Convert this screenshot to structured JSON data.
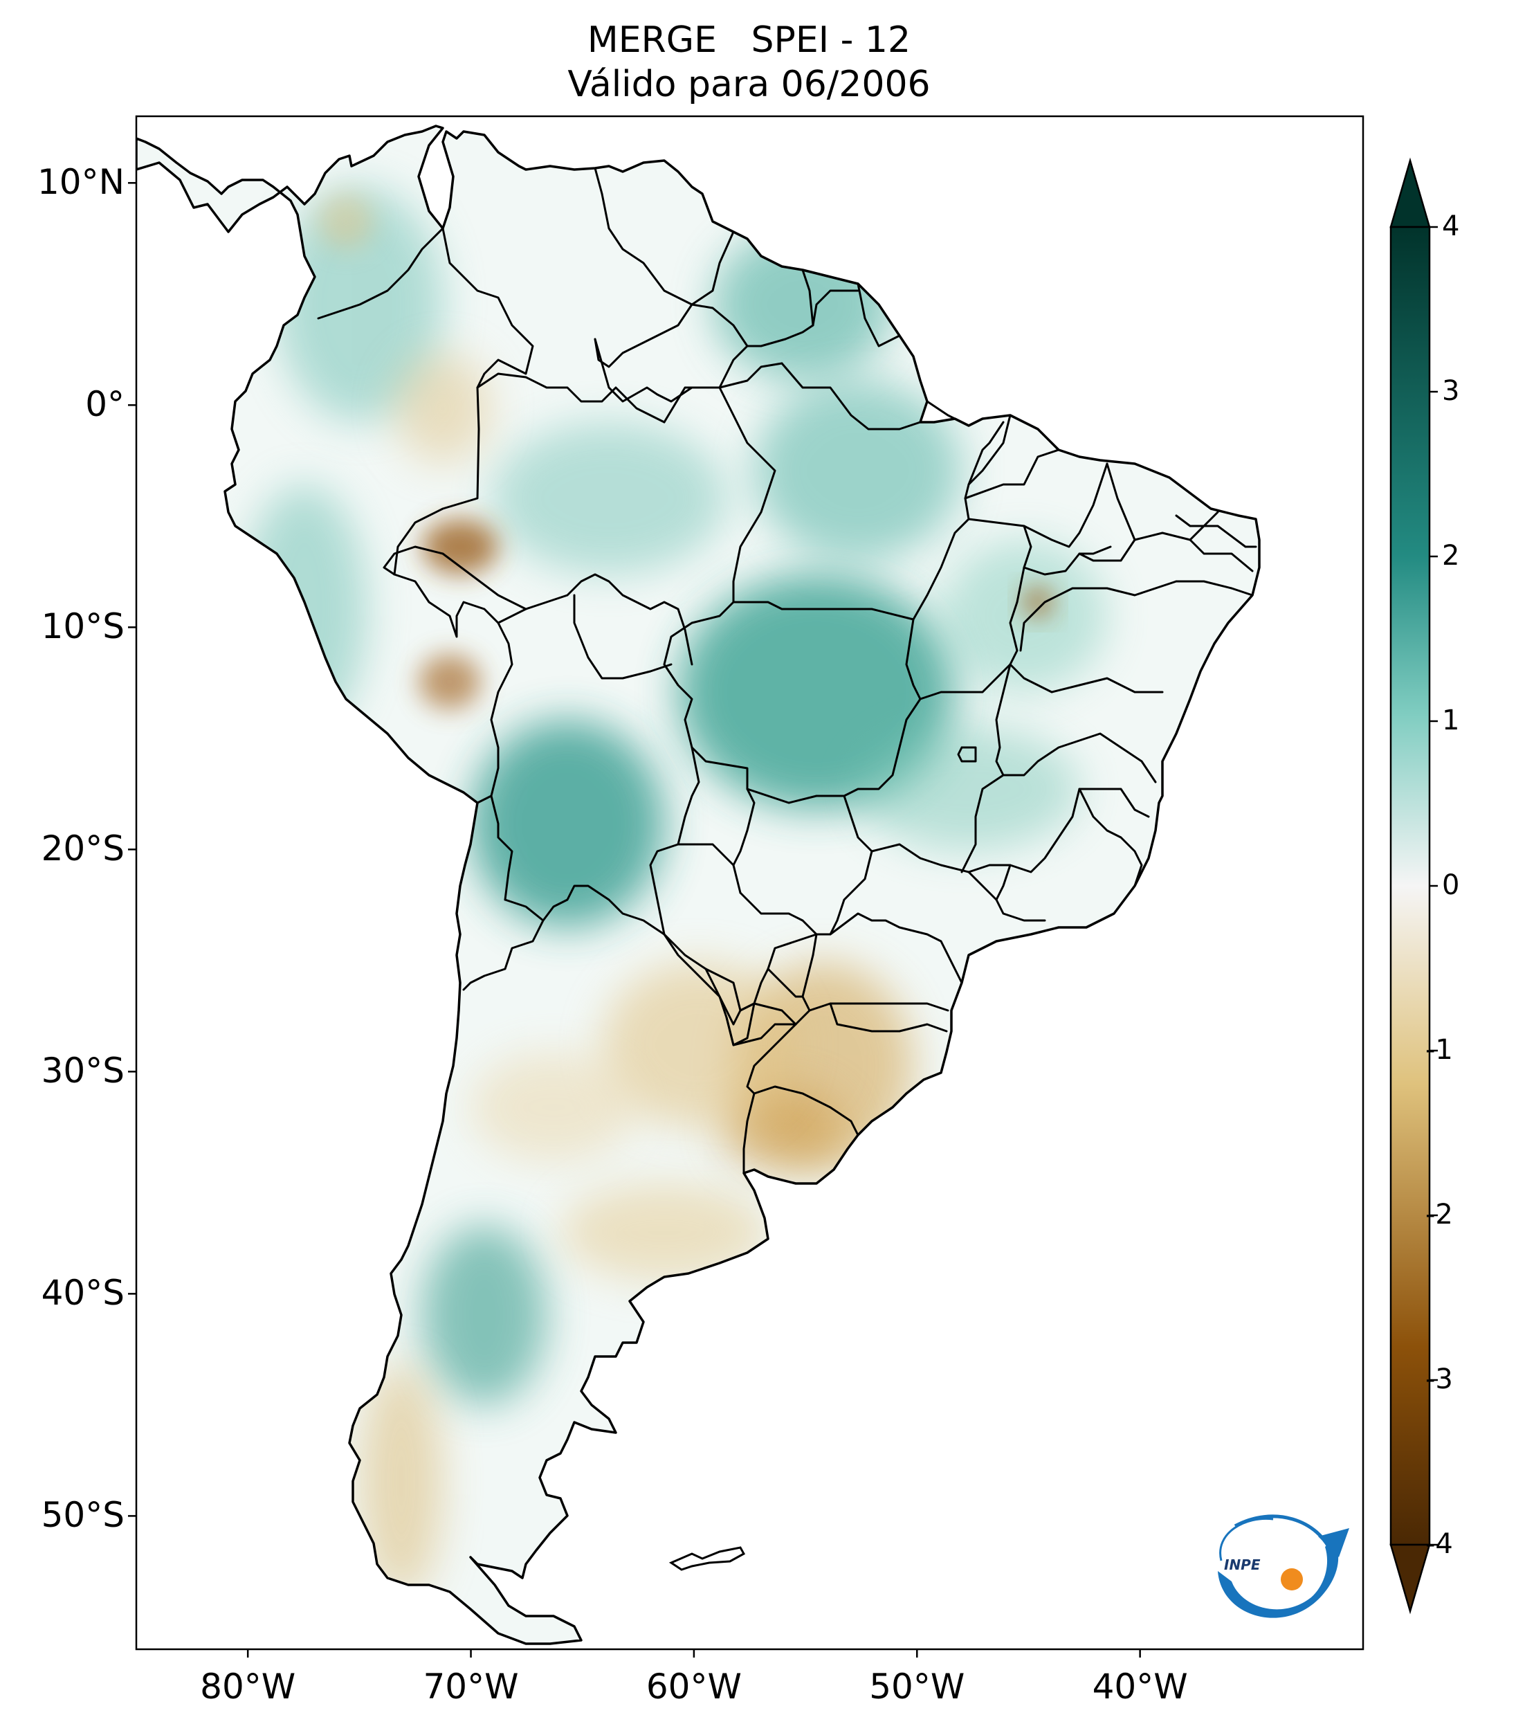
{
  "title": {
    "line1": "MERGE   SPEI - 12",
    "line2": "Válido para 06/2006"
  },
  "map": {
    "lon_range": [
      -85,
      -30
    ],
    "lat_range": [
      -56,
      13
    ],
    "lat_ticks": [
      {
        "value": 10,
        "label": "10°N"
      },
      {
        "value": 0,
        "label": "0°"
      },
      {
        "value": -10,
        "label": "10°S"
      },
      {
        "value": -20,
        "label": "20°S"
      },
      {
        "value": -30,
        "label": "30°S"
      },
      {
        "value": -40,
        "label": "40°S"
      },
      {
        "value": -50,
        "label": "50°S"
      }
    ],
    "lon_ticks": [
      {
        "value": -80,
        "label": "80°W"
      },
      {
        "value": -70,
        "label": "70°W"
      },
      {
        "value": -60,
        "label": "60°W"
      },
      {
        "value": -50,
        "label": "50°W"
      },
      {
        "value": -40,
        "label": "40°W"
      }
    ],
    "drought_regions": [
      {
        "name": "southern Brazil / Uruguay",
        "lon": -55,
        "lat": -31,
        "spei": -1.3
      },
      {
        "name": "northern Argentina",
        "lon": -62,
        "lat": -29,
        "spei": -0.9
      },
      {
        "name": "western Amazon",
        "lon": -71,
        "lat": -6.5,
        "spei": -1.8
      },
      {
        "name": "central Peru",
        "lon": -73,
        "lat": -13,
        "spei": -1.5
      },
      {
        "name": "Patagonia",
        "lon": -72,
        "lat": -48,
        "spei": -0.8
      }
    ],
    "wet_regions": [
      {
        "name": "central Brazil",
        "lon": -54,
        "lat": -14,
        "spei": 2.2
      },
      {
        "name": "Bolivia",
        "lon": -64,
        "lat": -19,
        "spei": 2.0
      },
      {
        "name": "Guianas",
        "lon": -57,
        "lat": 4,
        "spei": 1.8
      },
      {
        "name": "northern Patagonia",
        "lon": -69,
        "lat": -40,
        "spei": 1.6
      },
      {
        "name": "eastern Amazon",
        "lon": -52,
        "lat": -3,
        "spei": 1.6
      }
    ]
  },
  "colorbar": {
    "min": -4,
    "max": 4,
    "ticks": [
      {
        "value": 4,
        "label": "4"
      },
      {
        "value": 3,
        "label": "3"
      },
      {
        "value": 2,
        "label": "2"
      },
      {
        "value": 1,
        "label": "1"
      },
      {
        "value": 0,
        "label": "0"
      },
      {
        "value": -1,
        "label": "-1"
      },
      {
        "value": -2,
        "label": "-2"
      },
      {
        "value": -3,
        "label": "-3"
      },
      {
        "value": -4,
        "label": "-4"
      }
    ],
    "colors": {
      "very_wet": "#01332b",
      "wet": "#238b82",
      "moist": "#80cdc1",
      "neutral": "#f5f5f5",
      "dry": "#dfc27d",
      "very_dry": "#8c510a",
      "extreme_dry": "#4a2804"
    }
  },
  "logo": {
    "text": "INPE",
    "blue": "#1874bd",
    "orange": "#f08c1e"
  }
}
